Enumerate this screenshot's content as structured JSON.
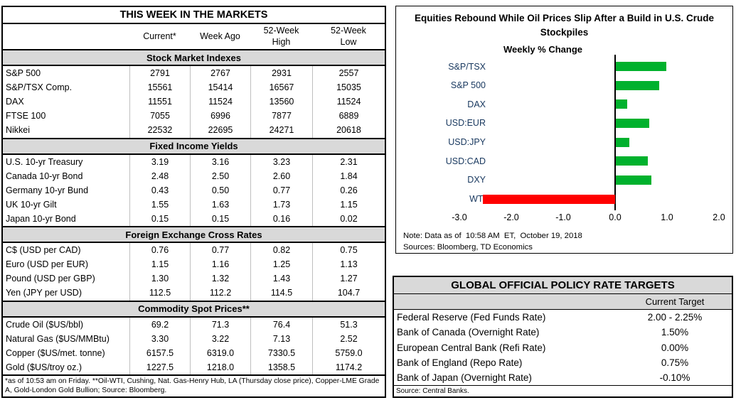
{
  "markets_table": {
    "title": "THIS WEEK IN THE MARKETS",
    "columns": [
      "Current*",
      "Week Ago",
      "52-Week\nHigh",
      "52-Week\nLow"
    ],
    "sections": [
      {
        "header": "Stock Market Indexes",
        "rows": [
          [
            "S&P 500",
            "2791",
            "2767",
            "2931",
            "2557"
          ],
          [
            "S&P/TSX Comp.",
            "15561",
            "15414",
            "16567",
            "15035"
          ],
          [
            "DAX",
            "11551",
            "11524",
            "13560",
            "11524"
          ],
          [
            "FTSE 100",
            "7055",
            "6996",
            "7877",
            "6889"
          ],
          [
            "Nikkei",
            "22532",
            "22695",
            "24271",
            "20618"
          ]
        ]
      },
      {
        "header": "Fixed Income Yields",
        "rows": [
          [
            "U.S. 10-yr Treasury",
            "3.19",
            "3.16",
            "3.23",
            "2.31"
          ],
          [
            "Canada 10-yr Bond",
            "2.48",
            "2.50",
            "2.60",
            "1.84"
          ],
          [
            "Germany 10-yr Bund",
            "0.43",
            "0.50",
            "0.77",
            "0.26"
          ],
          [
            "UK 10-yr Gilt",
            "1.55",
            "1.63",
            "1.73",
            "1.15"
          ],
          [
            "Japan 10-yr Bond",
            "0.15",
            "0.15",
            "0.16",
            "0.02"
          ]
        ]
      },
      {
        "header": "Foreign Exchange Cross Rates",
        "rows": [
          [
            "C$ (USD per CAD)",
            "0.76",
            "0.77",
            "0.82",
            "0.75"
          ],
          [
            "Euro (USD per EUR)",
            "1.15",
            "1.16",
            "1.25",
            "1.13"
          ],
          [
            "Pound (USD per GBP)",
            "1.30",
            "1.32",
            "1.43",
            "1.27"
          ],
          [
            "Yen (JPY per USD)",
            "112.5",
            "112.2",
            "114.5",
            "104.7"
          ]
        ]
      },
      {
        "header": "Commodity Spot Prices**",
        "rows": [
          [
            "Crude Oil ($US/bbl)",
            "69.2",
            "71.3",
            "76.4",
            "51.3"
          ],
          [
            "Natural Gas ($US/MMBtu)",
            "3.30",
            "3.22",
            "7.13",
            "2.52"
          ],
          [
            "Copper ($US/met. tonne)",
            "6157.5",
            "6319.0",
            "7330.5",
            "5759.0"
          ],
          [
            "Gold ($US/troy oz.)",
            "1227.5",
            "1218.0",
            "1358.5",
            "1174.2"
          ]
        ]
      }
    ],
    "footnote": "*as of 10:53 am on Friday. **Oil-WTI, Cushing, Nat. Gas-Henry Hub, LA (Thursday close price), Copper-LME Grade A, Gold-London Gold Bullion; Source: Bloomberg."
  },
  "chart_data": {
    "type": "bar",
    "orientation": "horizontal",
    "title": "Equities Rebound While Oil Prices Slip After a Build in U.S. Crude Stockpiles",
    "xlabel": "Weekly % Change",
    "categories": [
      "S&P/TSX",
      "S&P 500",
      "DAX",
      "USD:EUR",
      "USD:JPY",
      "USD:CAD",
      "DXY",
      "WTI"
    ],
    "values": [
      0.97,
      0.83,
      0.22,
      0.64,
      0.26,
      0.62,
      0.69,
      -2.55
    ],
    "xticks": [
      "-3.0",
      "-2.0",
      "-1.0",
      "0.0",
      "1.0",
      "2.0"
    ],
    "xlim": [
      -3.5,
      2.25
    ],
    "grid": false,
    "legend": "none",
    "positive_color": "#00B12D",
    "negative_color": "#FF0000",
    "label_color": "#17375E",
    "note": "Note: Data as of  10:58 AM  ET,  October 19, 2018",
    "sources": "Sources: Bloomberg, TD Economics"
  },
  "policy_table": {
    "title": "GLOBAL OFFICIAL POLICY RATE TARGETS",
    "column": "Current Target",
    "rows": [
      [
        "Federal Reserve (Fed Funds Rate)",
        "2.00 - 2.25%"
      ],
      [
        "Bank of Canada (Overnight Rate)",
        "1.50%"
      ],
      [
        "European Central Bank (Refi Rate)",
        "0.00%"
      ],
      [
        "Bank of England (Repo Rate)",
        "0.75%"
      ],
      [
        "Bank of Japan (Overnight Rate)",
        "-0.10%"
      ]
    ],
    "source": "Source: Central Banks."
  }
}
